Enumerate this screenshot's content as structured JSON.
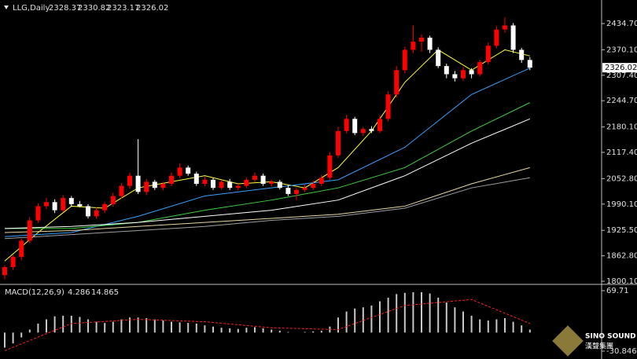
{
  "chart_data": [
    {
      "type": "candlestick",
      "title": "LLG,Daily",
      "header_values": [
        2328.37,
        2330.82,
        2323.17,
        2326.02
      ],
      "last_price": {
        "value": 2326.02,
        "label": "2326.02"
      },
      "up_color": "#ff0000",
      "down_color": "#ffffff",
      "open": [
        1815,
        1835,
        1860,
        1900,
        1950,
        1985,
        1995,
        1975,
        2005,
        1990,
        1985,
        1960,
        1975,
        1990,
        2010,
        2035,
        2060,
        2020,
        2045,
        2030,
        2040,
        2060,
        2080,
        2065,
        2040,
        2050,
        2030,
        2045,
        2030,
        2035,
        2050,
        2060,
        2040,
        2045,
        2030,
        2015,
        2025,
        2030,
        2040,
        2055,
        2110,
        2170,
        2200,
        2165,
        2175,
        2170,
        2200,
        2260,
        2320,
        2370,
        2390,
        2400,
        2370,
        2330,
        2310,
        2300,
        2320,
        2310,
        2340,
        2380,
        2420,
        2430,
        2370,
        2345
      ],
      "high": [
        1840,
        1865,
        1905,
        1958,
        1992,
        2005,
        2002,
        2012,
        2010,
        1998,
        1990,
        1982,
        1995,
        2018,
        2042,
        2068,
        2150,
        2052,
        2050,
        2045,
        2068,
        2090,
        2085,
        2070,
        2058,
        2055,
        2050,
        2052,
        2040,
        2055,
        2068,
        2065,
        2050,
        2050,
        2036,
        2030,
        2038,
        2048,
        2062,
        2118,
        2180,
        2210,
        2205,
        2180,
        2182,
        2208,
        2268,
        2330,
        2378,
        2430,
        2408,
        2405,
        2376,
        2336,
        2318,
        2328,
        2325,
        2345,
        2388,
        2428,
        2450,
        2436,
        2375,
        2352
      ],
      "low": [
        1805,
        1828,
        1852,
        1894,
        1944,
        1978,
        1968,
        1970,
        1984,
        1982,
        1955,
        1954,
        1968,
        1984,
        2004,
        2028,
        2015,
        2012,
        2025,
        2024,
        2034,
        2054,
        2060,
        2035,
        2034,
        2025,
        2026,
        2025,
        2024,
        2030,
        2044,
        2035,
        2034,
        2026,
        2010,
        2000,
        2020,
        2025,
        2035,
        2050,
        2104,
        2164,
        2160,
        2158,
        2165,
        2165,
        2194,
        2252,
        2312,
        2362,
        2365,
        2362,
        2325,
        2300,
        2292,
        2294,
        2300,
        2305,
        2334,
        2374,
        2412,
        2362,
        2338,
        2320
      ],
      "close": [
        1835,
        1860,
        1900,
        1950,
        1985,
        1995,
        1975,
        2005,
        1990,
        1985,
        1960,
        1975,
        1990,
        2010,
        2035,
        2060,
        2020,
        2045,
        2030,
        2040,
        2060,
        2080,
        2065,
        2040,
        2050,
        2030,
        2045,
        2030,
        2035,
        2050,
        2060,
        2040,
        2045,
        2030,
        2015,
        2025,
        2030,
        2040,
        2055,
        2110,
        2170,
        2200,
        2165,
        2175,
        2170,
        2200,
        2260,
        2320,
        2370,
        2390,
        2400,
        2370,
        2330,
        2310,
        2300,
        2320,
        2310,
        2340,
        2380,
        2420,
        2430,
        2370,
        2345,
        2326.02
      ],
      "series": [
        {
          "color": "#ffff40",
          "x": [
            0,
            4,
            8,
            12,
            16,
            20,
            24,
            28,
            32,
            36,
            40,
            44,
            48,
            52,
            56,
            60,
            63
          ],
          "values": [
            1850,
            1920,
            1985,
            1980,
            2030,
            2045,
            2060,
            2040,
            2045,
            2030,
            2080,
            2170,
            2290,
            2370,
            2320,
            2370,
            2355
          ]
        },
        {
          "color": "#3aa0ff",
          "x": [
            0,
            8,
            16,
            24,
            32,
            40,
            48,
            56,
            63
          ],
          "values": [
            1910,
            1920,
            1960,
            2010,
            2030,
            2050,
            2130,
            2260,
            2325
          ]
        },
        {
          "color": "#40d040",
          "x": [
            0,
            8,
            16,
            24,
            32,
            40,
            48,
            56,
            63
          ],
          "values": [
            1930,
            1930,
            1945,
            1975,
            2000,
            2030,
            2080,
            2170,
            2240
          ]
        },
        {
          "color": "#ffffff",
          "x": [
            0,
            8,
            16,
            24,
            32,
            40,
            48,
            56,
            63
          ],
          "values": [
            1930,
            1935,
            1945,
            1960,
            1975,
            2000,
            2060,
            2140,
            2200
          ]
        },
        {
          "color": "#e8d8a0",
          "x": [
            0,
            8,
            16,
            24,
            32,
            40,
            48,
            56,
            63
          ],
          "values": [
            1920,
            1925,
            1935,
            1945,
            1955,
            1965,
            1985,
            2040,
            2080
          ]
        },
        {
          "color": "#a0a0a0",
          "x": [
            0,
            8,
            16,
            24,
            32,
            40,
            48,
            56,
            63
          ],
          "values": [
            1905,
            1915,
            1925,
            1935,
            1950,
            1960,
            1980,
            2030,
            2055
          ]
        }
      ],
      "ylim": [
        1792.4,
        2492.7
      ],
      "yticks": [
        {
          "value": 2434.7,
          "label": "2434.70"
        },
        {
          "value": 2370.1,
          "label": "2370.10"
        },
        {
          "value": 2307.4,
          "label": "2307.40"
        },
        {
          "value": 2244.7,
          "label": "2244.70"
        },
        {
          "value": 2180.1,
          "label": "2180.10"
        },
        {
          "value": 2117.4,
          "label": "2117.40"
        },
        {
          "value": 2052.8,
          "label": "2052.80"
        },
        {
          "value": 1990.1,
          "label": "1990.10"
        },
        {
          "value": 1925.5,
          "label": "1925.50"
        },
        {
          "value": 1862.8,
          "label": "1862.80"
        },
        {
          "value": 1800.1,
          "label": "1800.10"
        }
      ]
    },
    {
      "type": "macd",
      "title": "MACD(12,26,9)",
      "header_values": [
        4.286,
        14.865
      ],
      "color": "#c8c8c8",
      "values": [
        -25,
        -18,
        -8,
        5,
        15,
        22,
        27,
        28,
        28,
        26,
        22,
        18,
        16,
        18,
        22,
        25,
        25,
        24,
        22,
        20,
        18,
        17,
        16,
        15,
        12,
        10,
        8,
        7,
        6,
        8,
        9,
        7,
        5,
        3,
        1,
        0,
        1,
        2,
        3,
        10,
        25,
        35,
        40,
        42,
        45,
        52,
        58,
        64,
        66,
        67,
        67,
        65,
        58,
        50,
        42,
        35,
        28,
        22,
        20,
        22,
        24,
        18,
        12,
        5
      ],
      "signal": {
        "color": "#ff2020",
        "x": [
          0,
          8,
          16,
          24,
          32,
          40,
          48,
          56,
          63
        ],
        "values": [
          -30,
          15,
          22,
          18,
          8,
          5,
          45,
          55,
          15
        ]
      },
      "ylim": [
        -43.9,
        77.5
      ],
      "yticks": [
        69.71,
        -30.846
      ]
    }
  ],
  "logo": {
    "text": "SINO SOUND",
    "subtitle": "漢聲集團"
  }
}
